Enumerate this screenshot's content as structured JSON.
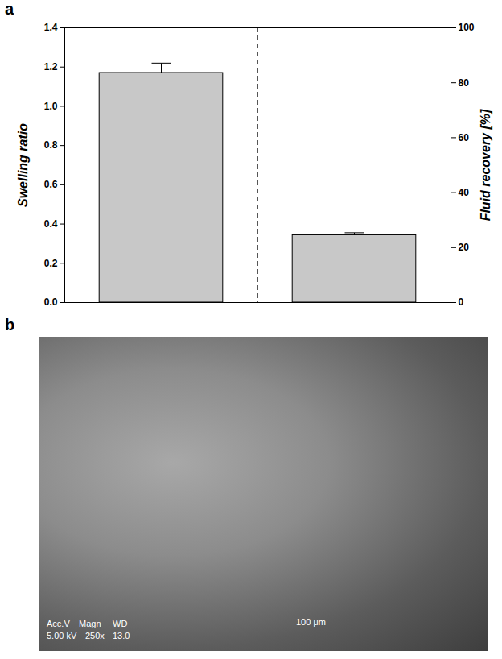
{
  "chart_data": [
    {
      "type": "bar",
      "panel": "a",
      "categories": [
        null,
        null
      ],
      "ylabel": "Swelling ratio",
      "y2label": "Fluid recovery [%]",
      "ylim": [
        0,
        1.4
      ],
      "yticks": [
        {
          "value": 0,
          "label": "0.0"
        },
        0.2,
        0.4,
        0.6,
        0.8,
        {
          "value": 1,
          "label": "1.0"
        },
        1.2,
        1.4
      ],
      "y2lim": [
        0,
        100
      ],
      "y2ticks": [
        0,
        20,
        40,
        60,
        80,
        100
      ],
      "series": [
        {
          "name": "Swelling ratio",
          "axis": "y",
          "color": "#c8c8c8",
          "values": [
            1.17,
            null
          ],
          "errors": [
            0.05,
            null
          ]
        },
        {
          "name": "Fluid recovery [%]",
          "axis": "y2",
          "color": "#c8c8c8",
          "values": [
            null,
            24.5
          ],
          "errors": [
            null,
            0.9
          ]
        }
      ]
    },
    {
      "type": "image",
      "panel": "b",
      "annotations": [
        "Acc.V",
        "Magn",
        "WD",
        "5.00 kV",
        "250x",
        "13.0"
      ],
      "scale_bar": "100 μm"
    }
  ]
}
